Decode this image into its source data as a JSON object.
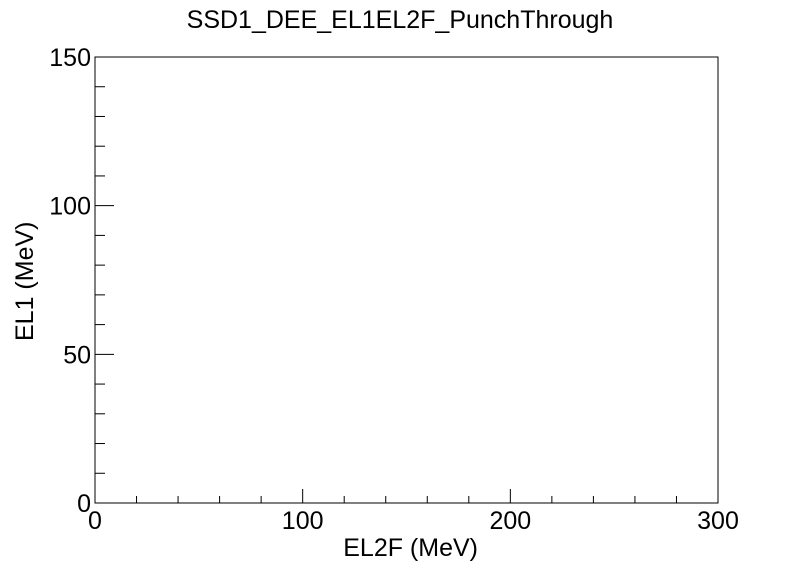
{
  "chart_data": {
    "type": "scatter",
    "title": "SSD1_DEE_EL1EL2F_PunchThrough",
    "xlabel": "EL2F (MeV)",
    "ylabel": "EL1 (MeV)",
    "xlim": [
      0,
      300
    ],
    "ylim": [
      0,
      150
    ],
    "x_ticks": [
      "0",
      "100",
      "200",
      "300"
    ],
    "y_ticks": [
      "0",
      "50",
      "100",
      "150"
    ],
    "x_tick_values": [
      0,
      100,
      200,
      300
    ],
    "y_tick_values": [
      0,
      50,
      100,
      150
    ],
    "x_minor_step": 20,
    "y_minor_step": 10,
    "series": [
      {
        "points": []
      }
    ],
    "grid": false,
    "legend": "none"
  }
}
